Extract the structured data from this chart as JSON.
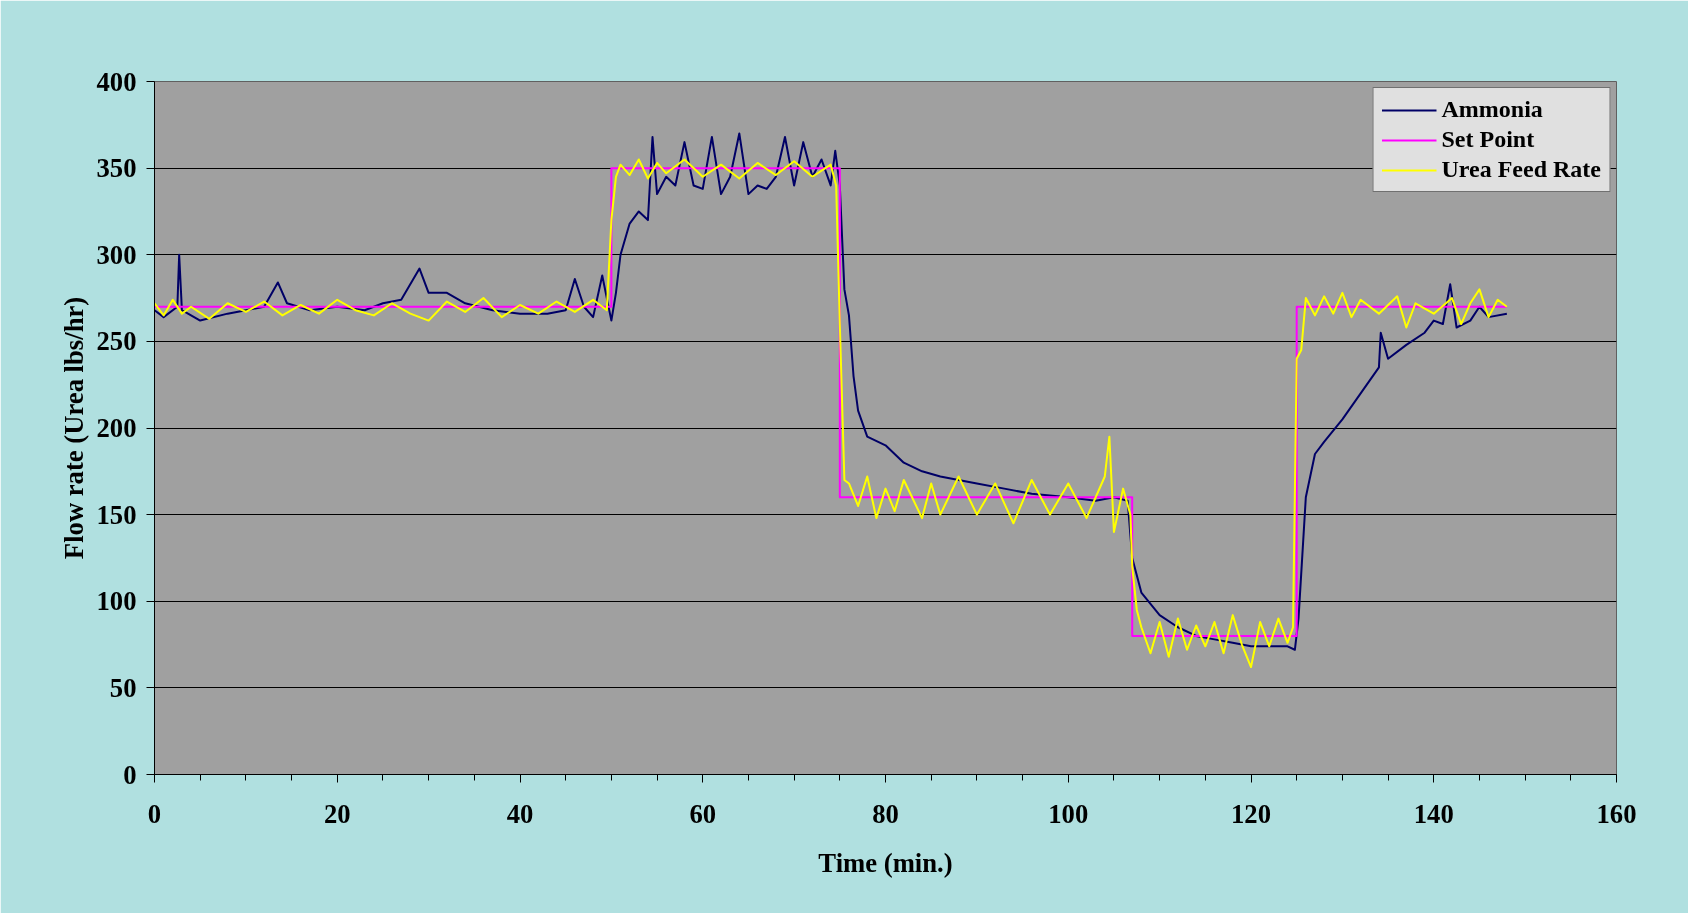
{
  "chart_data": {
    "type": "line",
    "xlabel": "Time (min.)",
    "ylabel": "Flow rate (Urea lbs/hr)",
    "xlim": [
      0,
      160
    ],
    "xticks": [
      0,
      20,
      40,
      60,
      80,
      100,
      120,
      140,
      160
    ],
    "ylim": [
      0,
      400
    ],
    "yticks": [
      0,
      50,
      100,
      150,
      200,
      250,
      300,
      350,
      400
    ],
    "grid": "y",
    "legend": "top right",
    "series": [
      {
        "name": "Ammonia",
        "color": "#000066",
        "x": [
          0,
          1,
          2.5,
          2.7,
          3,
          5,
          8,
          10,
          12,
          13.5,
          14.5,
          17,
          20,
          23,
          25,
          27,
          29,
          30,
          32,
          34,
          37,
          40,
          43,
          45,
          46,
          47,
          48,
          49,
          50,
          50.5,
          51,
          52,
          53,
          54,
          54.5,
          55,
          56,
          57,
          58,
          59,
          60,
          61,
          62,
          63,
          64,
          65,
          66,
          67,
          68,
          69,
          70,
          71,
          72,
          73,
          74,
          74.5,
          75,
          75.5,
          76,
          76.5,
          77,
          78,
          80,
          82,
          84,
          86,
          88,
          90,
          93,
          96,
          100,
          103,
          105,
          106.5,
          107,
          108,
          110,
          112,
          114,
          116,
          118,
          120,
          122,
          124,
          124.8,
          125.2,
          126,
          127,
          128,
          130,
          132,
          134,
          134.2,
          135,
          137,
          139,
          140,
          141,
          141.8,
          142.5,
          144,
          145,
          146,
          148
        ],
        "values": [
          268,
          264,
          270,
          300,
          268,
          262,
          266,
          268,
          270,
          284,
          272,
          268,
          270,
          268,
          272,
          274,
          292,
          278,
          278,
          272,
          268,
          266,
          266,
          268,
          286,
          270,
          264,
          288,
          262,
          278,
          300,
          318,
          325,
          320,
          368,
          335,
          345,
          340,
          365,
          340,
          338,
          368,
          335,
          345,
          370,
          335,
          340,
          338,
          345,
          368,
          340,
          365,
          345,
          355,
          340,
          360,
          340,
          280,
          265,
          230,
          210,
          195,
          190,
          180,
          175,
          172,
          170,
          168,
          165,
          162,
          160,
          158,
          160,
          158,
          125,
          105,
          92,
          85,
          80,
          78,
          76,
          74,
          74,
          74,
          72,
          90,
          160,
          185,
          192,
          205,
          220,
          235,
          255,
          240,
          248,
          255,
          262,
          260,
          283,
          258,
          262,
          270,
          264,
          266
        ]
      },
      {
        "name": "Set Point",
        "color": "#ff00ff",
        "type": "step",
        "x": [
          0,
          50,
          75,
          107,
          125,
          148
        ],
        "values": [
          270,
          350,
          160,
          80,
          270,
          270
        ]
      },
      {
        "name": "Urea Feed Rate",
        "color": "#ffff00",
        "x": [
          0,
          1,
          2,
          3,
          4,
          6,
          8,
          10,
          12,
          14,
          16,
          18,
          20,
          22,
          24,
          26,
          28,
          30,
          32,
          34,
          36,
          38,
          40,
          42,
          44,
          46,
          48,
          49.5,
          50,
          50.5,
          51,
          52,
          53,
          54,
          55,
          56,
          58,
          60,
          62,
          64,
          66,
          68,
          70,
          72,
          74,
          74.6,
          75,
          75.5,
          76,
          77,
          78,
          79,
          80,
          81,
          82,
          84,
          85,
          86,
          88,
          90,
          92,
          94,
          96,
          98,
          100,
          102,
          104,
          104.5,
          105,
          106,
          106.8,
          107,
          107.5,
          108,
          109,
          110,
          111,
          112,
          113,
          114,
          115,
          116,
          117,
          118,
          119,
          120,
          121,
          122,
          123,
          124,
          124.6,
          125,
          125.5,
          126,
          127,
          128,
          129,
          130,
          131,
          132,
          134,
          136,
          137,
          138,
          140,
          142,
          143,
          144,
          145,
          146,
          147,
          148
        ],
        "values": [
          272,
          265,
          274,
          266,
          270,
          263,
          272,
          267,
          273,
          265,
          271,
          266,
          274,
          268,
          265,
          272,
          266,
          262,
          273,
          267,
          275,
          264,
          271,
          266,
          273,
          267,
          274,
          268,
          320,
          345,
          352,
          346,
          355,
          344,
          353,
          347,
          355,
          345,
          352,
          344,
          353,
          346,
          354,
          345,
          352,
          340,
          260,
          170,
          168,
          155,
          172,
          148,
          165,
          152,
          170,
          148,
          168,
          150,
          172,
          150,
          168,
          145,
          170,
          150,
          168,
          148,
          172,
          195,
          140,
          165,
          150,
          120,
          95,
          85,
          70,
          88,
          68,
          90,
          72,
          86,
          74,
          88,
          70,
          92,
          75,
          62,
          88,
          74,
          90,
          76,
          85,
          240,
          245,
          275,
          265,
          276,
          266,
          278,
          264,
          274,
          266,
          276,
          258,
          272,
          266,
          275,
          260,
          272,
          280,
          264,
          274,
          270
        ]
      }
    ]
  }
}
